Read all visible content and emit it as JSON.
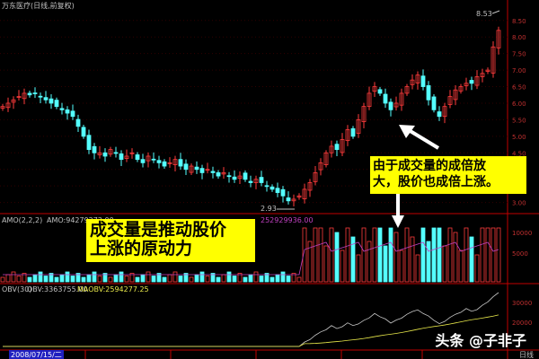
{
  "header": {
    "title": "万东医疗(日线,前复权)"
  },
  "volume_label": {
    "name": "AMO(2,2,2)",
    "value": "AMO:94279272.00",
    "value2": "252929936.00"
  },
  "obv_label": {
    "name": "OBV(30)",
    "obv": "OBV:3363755.00",
    "maobv": "MAOBV:2594277.25"
  },
  "footer": {
    "date": "2008/07/15/二",
    "period": "日线"
  },
  "annotations": {
    "box1_line1": "成交量是推动股价",
    "box1_line2": "上涨的原动力",
    "box2_line1": "由于成交量的成倍放",
    "box2_line2": "大，股价也成倍上涨。",
    "low_label": "2.93",
    "high_label": "8.53"
  },
  "watermark": "头条 @子非子",
  "colors": {
    "up": "#ff3b3b",
    "down": "#54ffff",
    "grid": "#c00000",
    "obv": "#c8c8c8",
    "maobv": "#e8e84a",
    "label": "#c0c0c0"
  },
  "chart_data": {
    "type": "candlestick",
    "price_ticks": [
      "8.50",
      "8.00",
      "7.50",
      "7.00",
      "6.50",
      "6.00",
      "5.50",
      "5.00",
      "4.50",
      "4.00",
      "3.50",
      "3.00"
    ],
    "ylim": [
      2.8,
      8.9
    ],
    "close": [
      5.9,
      6.0,
      6.1,
      6.2,
      6.3,
      6.25,
      6.3,
      6.2,
      6.1,
      6.0,
      5.9,
      5.8,
      5.7,
      5.6,
      5.3,
      5.0,
      4.6,
      4.5,
      4.5,
      4.4,
      4.6,
      4.5,
      4.3,
      4.4,
      4.5,
      4.3,
      4.2,
      4.4,
      4.3,
      4.2,
      4.1,
      4.2,
      4.3,
      4.1,
      4.0,
      4.1,
      4.0,
      3.9,
      4.0,
      3.9,
      3.8,
      3.9,
      3.8,
      3.7,
      3.8,
      3.7,
      3.6,
      3.7,
      3.6,
      3.5,
      3.4,
      3.3,
      3.2,
      3.05,
      3.1,
      3.2,
      3.4,
      3.6,
      3.9,
      4.2,
      4.5,
      4.7,
      4.6,
      4.9,
      5.2,
      5.0,
      5.5,
      5.9,
      6.3,
      6.5,
      6.3,
      6.0,
      5.8,
      6.0,
      6.3,
      6.5,
      6.7,
      6.85,
      6.5,
      6.1,
      5.8,
      5.6,
      5.9,
      6.2,
      6.4,
      6.5,
      6.6,
      6.6,
      6.8,
      6.9,
      7.0,
      7.7,
      8.2
    ],
    "volume_ticks": [
      "10000",
      "5000"
    ],
    "obv_ticks": [
      "30000",
      "20000"
    ]
  }
}
